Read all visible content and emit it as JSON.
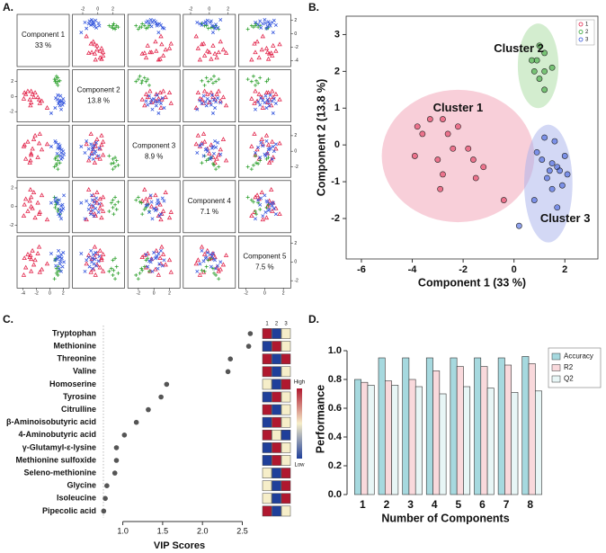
{
  "chart_data": [
    {
      "type": "scatter_matrix",
      "panel": "A.",
      "variables": [
        {
          "label": "Component 1",
          "variance": "33 %",
          "lim": [
            -4.5,
            2.5
          ],
          "ticks": [
            -4,
            -2,
            0,
            2
          ]
        },
        {
          "label": "Component 2",
          "variance": "13.8 %",
          "lim": [
            -3,
            3.2
          ],
          "ticks": [
            -2,
            0,
            2
          ]
        },
        {
          "label": "Component 3",
          "variance": "8.9 %",
          "lim": [
            -3,
            3
          ],
          "ticks": [
            -2,
            0,
            2
          ]
        },
        {
          "label": "Component 4",
          "variance": "7.1 %",
          "lim": [
            -2.5,
            2.5
          ],
          "ticks": [
            -2,
            0,
            2
          ]
        },
        {
          "label": "Component 5",
          "variance": "7.5 %",
          "lim": [
            -2.5,
            2.5
          ],
          "ticks": [
            -2,
            0,
            2
          ]
        }
      ],
      "series": [
        {
          "name": "1",
          "color": "#e2264c",
          "marker": "triangle",
          "components": [
            [
              -3.3,
              -2.8,
              -3.8,
              -2.2,
              -3.6,
              -2.6,
              -2.4,
              -1.8,
              -3.9,
              -3.0,
              -1.6,
              -1.2,
              -2.8,
              -1.5,
              -2.9,
              -0.4
            ],
            [
              0.7,
              0.7,
              0.5,
              0.5,
              0.3,
              0.3,
              -0.1,
              -0.1,
              -0.3,
              -0.4,
              -0.4,
              -0.6,
              -0.8,
              -0.9,
              -1.2,
              -1.5
            ],
            [
              1.2,
              -0.5,
              0.8,
              2.0,
              -1.0,
              0.3,
              1.5,
              -0.8,
              0.6,
              -1.5,
              1.0,
              0.2,
              -0.3,
              2.2,
              -1.2,
              0.9
            ],
            [
              -0.5,
              1.0,
              0.2,
              -1.2,
              0.8,
              -0.2,
              1.5,
              0.4,
              -1.0,
              0.6,
              -0.8,
              1.2,
              0.0,
              -0.6,
              1.8,
              -1.4
            ],
            [
              0.8,
              -1.0,
              0.4,
              0.2,
              -0.6,
              1.2,
              -0.3,
              0.9,
              -1.4,
              0.5,
              1.6,
              -0.8,
              0.3,
              -1.1,
              0.7,
              -0.2
            ]
          ]
        },
        {
          "name": "2",
          "color": "#2ca02c",
          "marker": "plus",
          "components": [
            [
              1.0,
              1.2,
              0.7,
              0.9,
              1.5,
              1.2,
              0.8,
              1.0,
              1.2
            ],
            [
              2.7,
              2.5,
              2.3,
              2.3,
              2.1,
              2.0,
              2.0,
              1.8,
              1.5
            ],
            [
              -1.8,
              -1.2,
              -2.0,
              -0.8,
              -1.5,
              -2.3,
              -1.0,
              -1.6,
              -0.6
            ],
            [
              0.5,
              -0.3,
              1.0,
              0.2,
              -0.8,
              0.7,
              -0.1,
              0.4,
              -0.5
            ],
            [
              -1.2,
              -0.5,
              -1.8,
              0.4,
              -0.9,
              -1.4,
              0.2,
              -0.7,
              -1.0
            ]
          ]
        },
        {
          "name": "3",
          "color": "#3355dd",
          "marker": "cross",
          "components": [
            [
              1.2,
              1.6,
              0.9,
              2.0,
              1.1,
              1.5,
              1.7,
              1.4,
              1.8,
              2.1,
              1.3,
              1.9,
              1.5,
              0.8,
              1.7,
              0.2
            ],
            [
              0.2,
              0.1,
              -0.2,
              -0.3,
              -0.4,
              -0.5,
              -0.6,
              -0.7,
              -0.7,
              -0.8,
              -0.9,
              -1.1,
              -1.2,
              -1.5,
              -1.7,
              -2.2
            ],
            [
              0.4,
              -0.6,
              1.1,
              0.0,
              -0.3,
              0.7,
              -1.0,
              0.5,
              0.2,
              -0.4,
              0.9,
              -0.8,
              0.3,
              1.3,
              -0.2,
              0.6
            ],
            [
              0.3,
              -0.6,
              0.9,
              -0.2,
              0.5,
              -1.0,
              0.1,
              0.7,
              -0.4,
              1.2,
              -0.8,
              0.2,
              -0.3,
              0.6,
              -1.3,
              0.4
            ],
            [
              0.6,
              0.1,
              -0.4,
              1.0,
              0.3,
              -0.2,
              0.8,
              -0.7,
              0.4,
              0.0,
              1.2,
              -0.5,
              0.5,
              0.2,
              -1.0,
              0.9
            ]
          ]
        }
      ]
    },
    {
      "type": "scatter",
      "panel": "B.",
      "xlabel": "Component 1 (33 %)",
      "ylabel": "Component 2 (13.8 %)",
      "xlim": [
        -6.6,
        3.3
      ],
      "xticks": [
        -6,
        -4,
        -2,
        0,
        2
      ],
      "ylim": [
        -3.1,
        3.5
      ],
      "yticks": [
        -2,
        -1,
        0,
        1,
        2,
        3
      ],
      "legend": "top-right",
      "ellipses": [
        {
          "label": "Cluster 1",
          "color": "#f2a0b4",
          "cx": -2.2,
          "cy": -0.3,
          "rx": 3.0,
          "ry": 1.8
        },
        {
          "label": "Cluster 2",
          "color": "#a8dca0",
          "cx": 0.95,
          "cy": 2.15,
          "rx": 0.8,
          "ry": 1.15
        },
        {
          "label": "Cluster 3",
          "color": "#a8b2ec",
          "cx": 1.35,
          "cy": -1.05,
          "rx": 0.95,
          "ry": 1.6
        }
      ]
    },
    {
      "type": "dot",
      "panel": "C.",
      "xlabel": "VIP Scores",
      "categories": [
        "Tryptophan",
        "Methionine",
        "Threonine",
        "Valine",
        "Homoserine",
        "Tyrosine",
        "Citrulline",
        "β-Aminoisobutyric acid",
        "4-Aminobutyric acid",
        "γ-Glutamyl-ε-lysine",
        "Methionine sulfoxide",
        "Seleno-methionine",
        "Glycine",
        "Isoleucine",
        "Pipecolic acid"
      ],
      "values": [
        2.6,
        2.58,
        2.35,
        2.32,
        1.55,
        1.48,
        1.32,
        1.17,
        1.02,
        0.92,
        0.92,
        0.9,
        0.8,
        0.78,
        0.76
      ],
      "color": "#555555",
      "xlim": [
        0.7,
        2.72
      ],
      "xticks": [
        {
          "value": 1,
          "label": "1.0"
        },
        1.5,
        {
          "value": 2,
          "label": "2.0"
        },
        2.5
      ],
      "heatmap": {
        "columns": [
          "1",
          "2",
          "3"
        ],
        "colorlim": [
          -1,
          1
        ],
        "high": "High",
        "low": "Low",
        "values": [
          [
            1,
            -1,
            0
          ],
          [
            -1,
            1,
            0
          ],
          [
            1,
            -1,
            1
          ],
          [
            1,
            -1,
            0
          ],
          [
            0,
            -1,
            1
          ],
          [
            -1,
            1,
            0
          ],
          [
            1,
            -1,
            0
          ],
          [
            -1,
            1,
            0
          ],
          [
            1,
            0,
            -1
          ],
          [
            -1,
            1,
            0
          ],
          [
            -1,
            1,
            0
          ],
          [
            0,
            -1,
            1
          ],
          [
            0,
            -1,
            1
          ],
          [
            0,
            -1,
            1
          ],
          [
            1,
            -1,
            0
          ]
        ]
      }
    },
    {
      "type": "bar",
      "panel": "D.",
      "xlabel": "Number of Components",
      "ylabel": "Performance",
      "categories": [
        "1",
        "2",
        "3",
        "4",
        "5",
        "6",
        "7",
        "8"
      ],
      "ylim": [
        0,
        1.05
      ],
      "yticks": [
        {
          "value": 0,
          "label": "0.0"
        },
        0.2,
        0.4,
        0.6,
        0.8,
        {
          "value": 1,
          "label": "1.0"
        }
      ],
      "legend": "top-right",
      "series": [
        {
          "name": "Accuracy",
          "color": "#a6d9df",
          "values": [
            0.8,
            0.95,
            0.95,
            0.95,
            0.95,
            0.95,
            0.95,
            0.96
          ]
        },
        {
          "name": "R2",
          "color": "#f9d9dc",
          "values": [
            0.78,
            0.79,
            0.8,
            0.86,
            0.89,
            0.89,
            0.9,
            0.91
          ]
        },
        {
          "name": "Q2",
          "color": "#e8f6f6",
          "values": [
            0.76,
            0.76,
            0.75,
            0.7,
            0.75,
            0.74,
            0.71,
            0.72
          ]
        }
      ]
    }
  ]
}
